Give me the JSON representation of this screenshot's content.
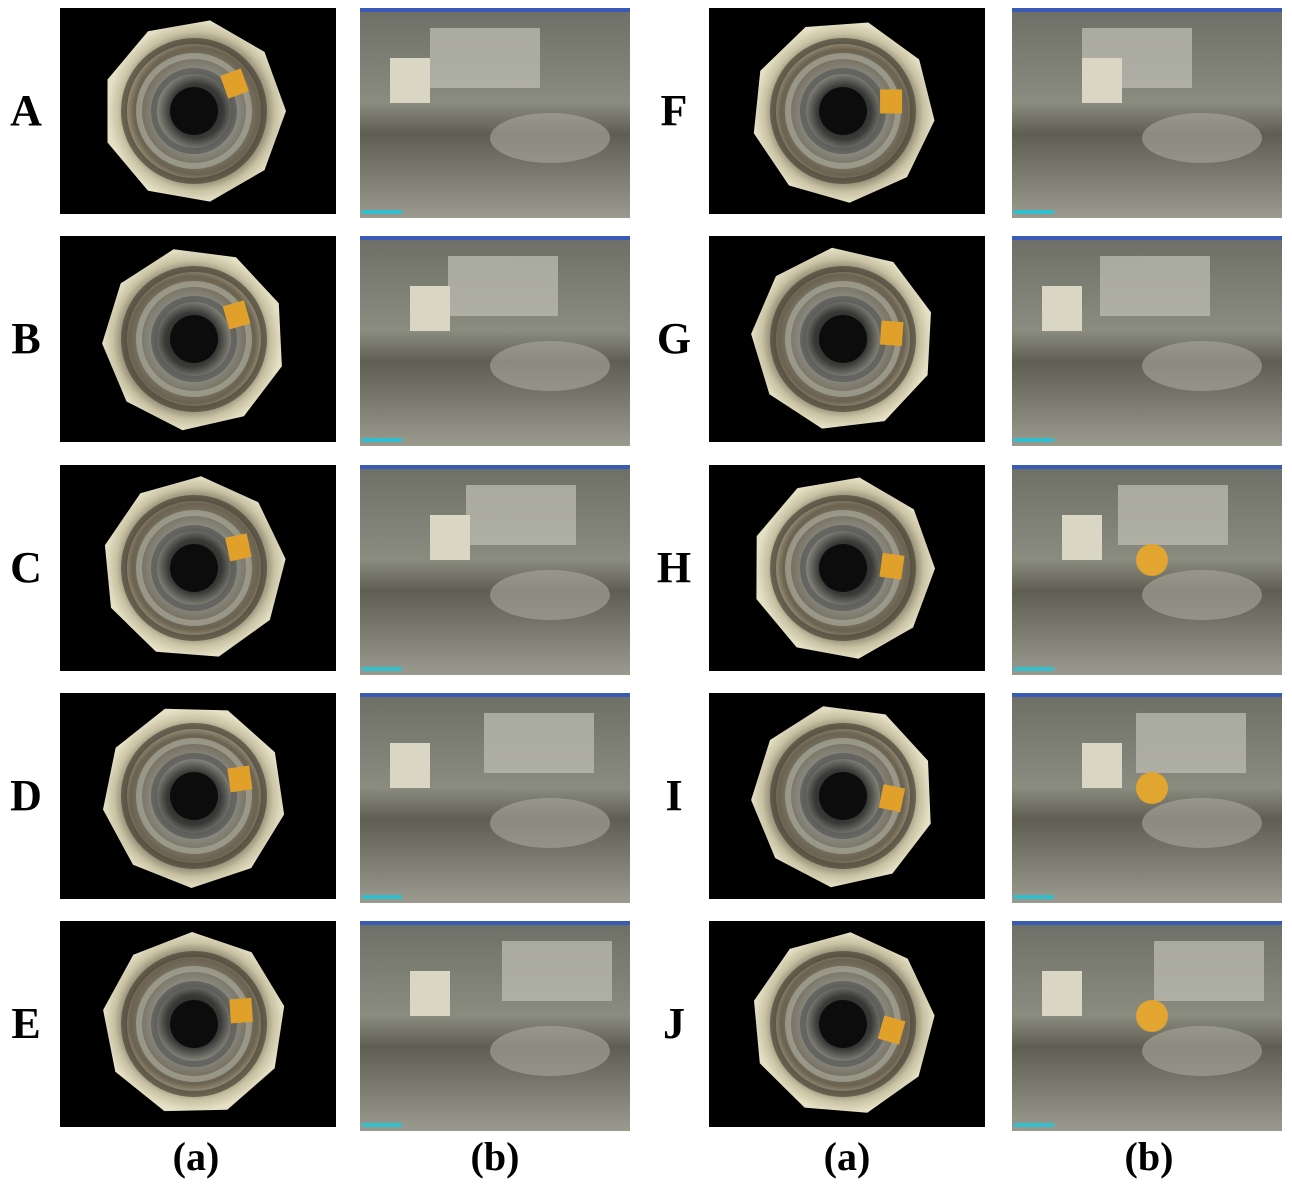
{
  "rows": [
    "A",
    "B",
    "C",
    "D",
    "E",
    "F",
    "G",
    "H",
    "I",
    "J"
  ],
  "column_labels": [
    "(a)",
    "(b)",
    "(a)",
    "(b)"
  ]
}
